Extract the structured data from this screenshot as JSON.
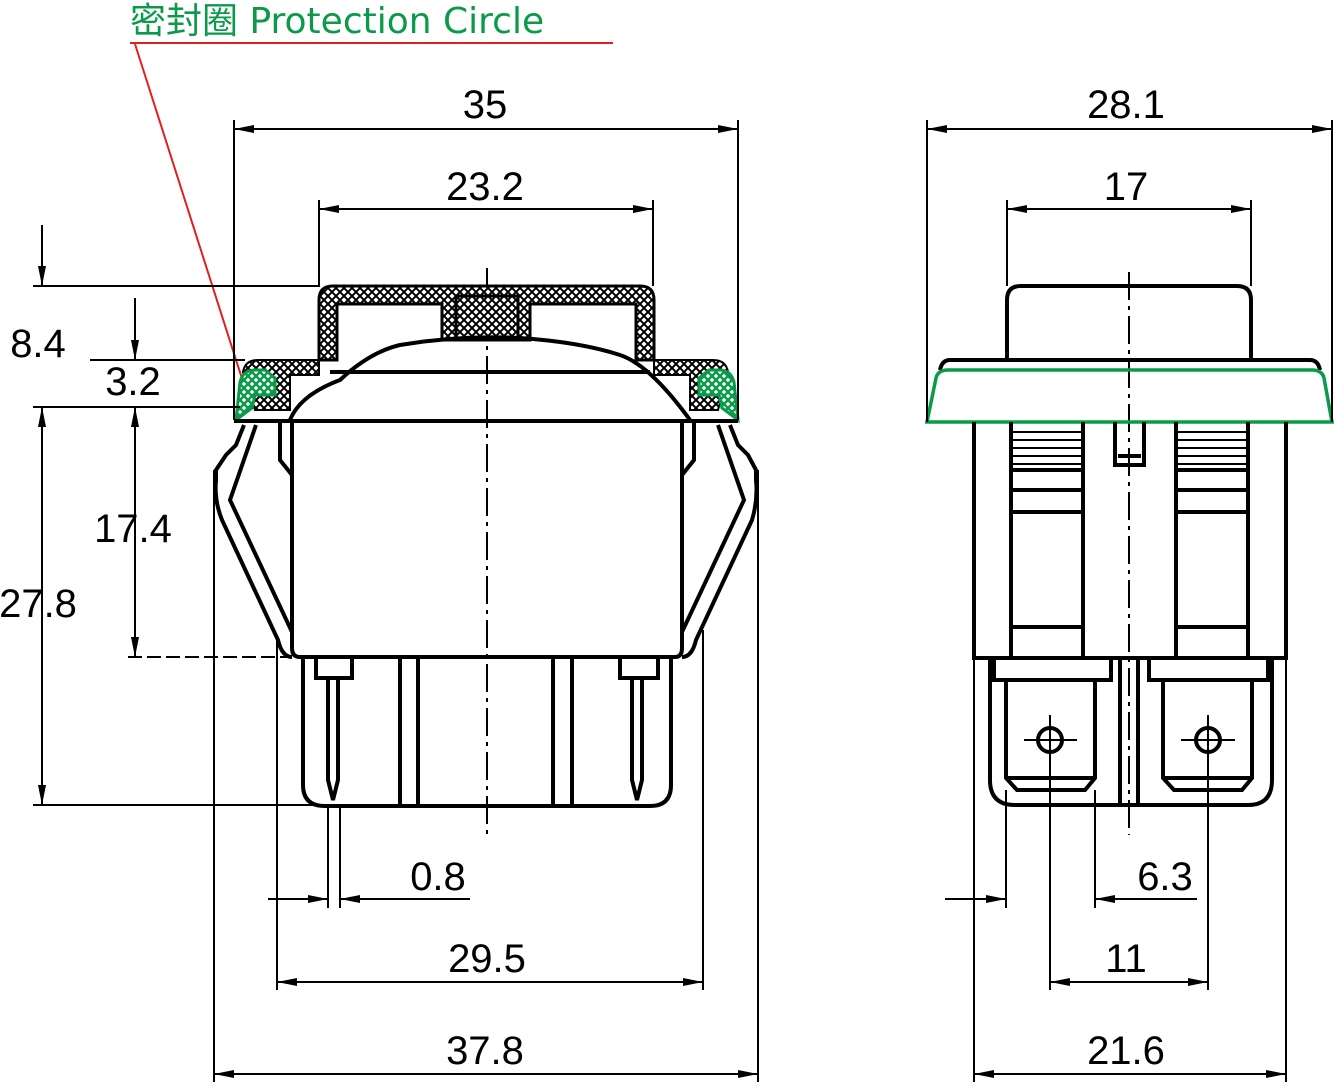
{
  "title": {
    "text": "密封圈 Protection Circle",
    "color": "#0a9a4a",
    "underline_color": "#e02020"
  },
  "colors": {
    "seal": "#0a9a4a",
    "leader": "#e02020",
    "lines": "#000000"
  },
  "front_view": {
    "dims": {
      "overall_bezel_width": "35",
      "cap_width": "23.2",
      "top_height": "8.4",
      "bezel_height": "3.2",
      "body_depth": "17.4",
      "total_depth": "27.8",
      "pin_width": "0.8",
      "pin_spacing": "29.5",
      "clip_width": "37.8"
    }
  },
  "side_view": {
    "dims": {
      "overall_bezel_width": "28.1",
      "cap_width": "17",
      "terminal_width": "6.3",
      "terminal_spacing": "11",
      "body_width": "21.6"
    }
  }
}
